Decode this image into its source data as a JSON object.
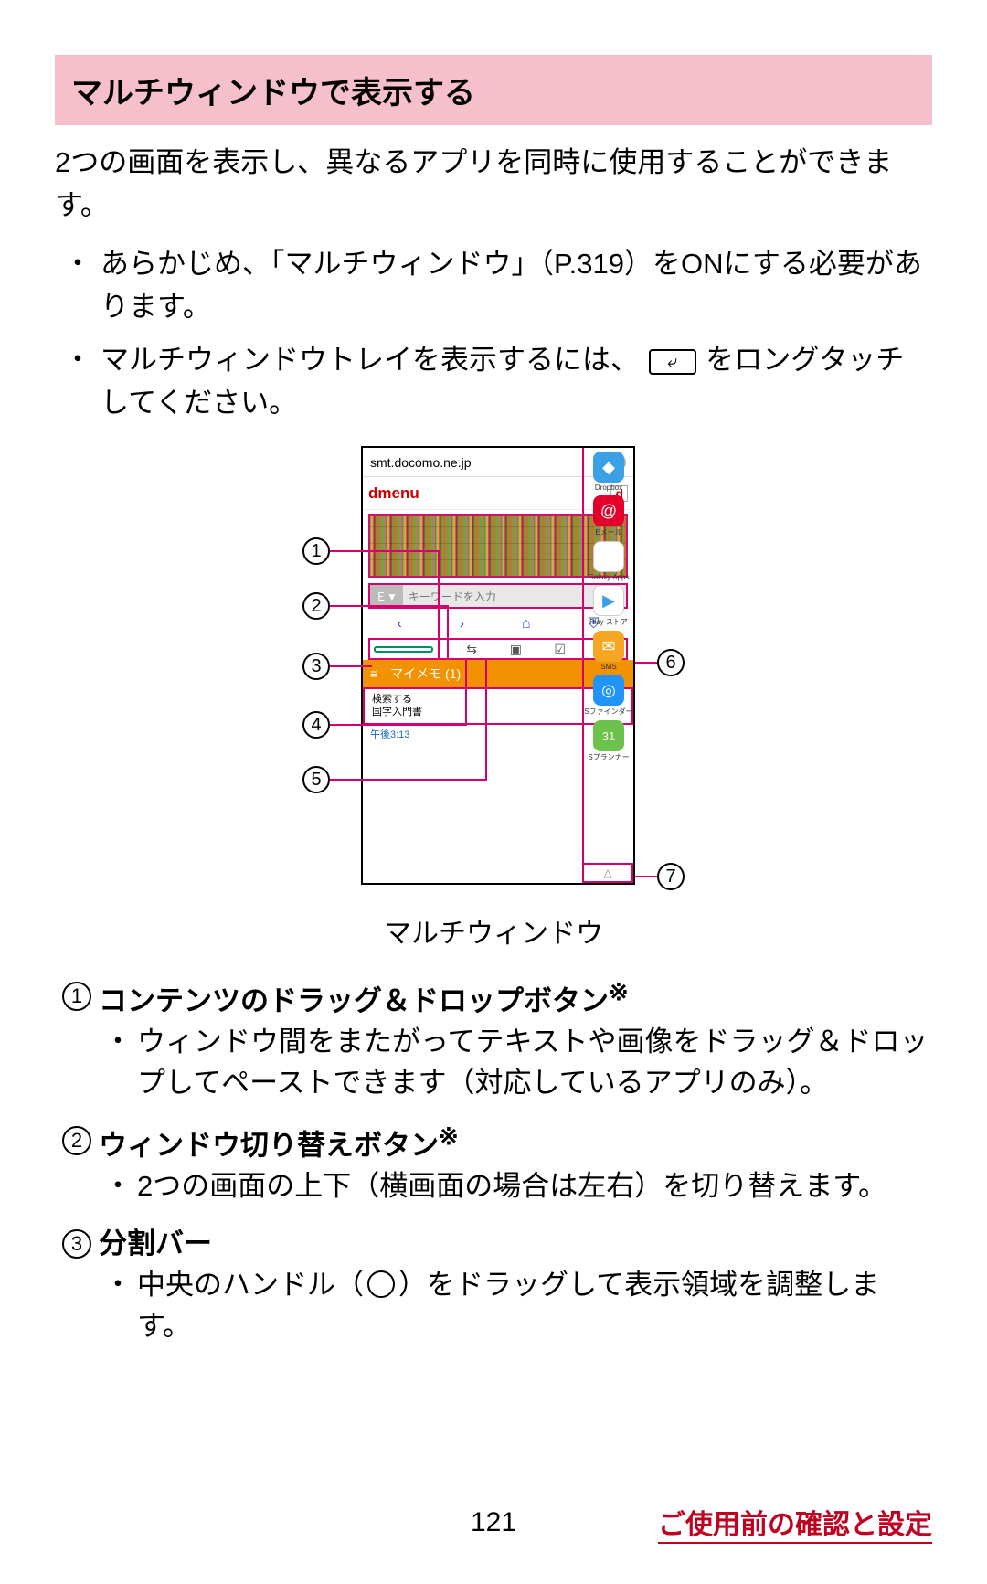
{
  "colors": {
    "title_bg": "#f5bfcc",
    "magenta": "#d6006c",
    "green": "#009060",
    "orange": "#f39200",
    "footer_red": "#c00020"
  },
  "title": "マルチウィンドウで表示する",
  "intro": "2つの画面を表示し、異なるアプリを同時に使用することができます。",
  "bullets": [
    {
      "pre": "あらかじめ、「マルチウィンドウ」（P.319）をONにする必要があります。"
    },
    {
      "pre": "マルチウィンドウトレイを表示するには、",
      "post": " をロングタッチしてください。",
      "icon": "back"
    }
  ],
  "figure": {
    "url": "smt.docomo.ne.jp",
    "dmenu": "dmenu",
    "dmark": "d",
    "kw_btn": "Ｅ▼",
    "keyword_placeholder": "キーワードを入力",
    "nav_icons": [
      "‹",
      "›",
      "⌂",
      "⛨"
    ],
    "tool_icons": [
      "⇆",
      "▣",
      "☑",
      "✕"
    ],
    "memo_header": "≡　マイメモ (1)",
    "memo_line1": "検索する",
    "memo_line2": "国字入門書",
    "memo_time": "午後3:13",
    "tray": [
      {
        "label": "Dropbox",
        "color": "#3ca0e6",
        "glyph": "◆"
      },
      {
        "label": "Eメール",
        "color": "#e4002b",
        "glyph": "@"
      },
      {
        "label": "Galaxy Apps",
        "color": "#ffffff",
        "glyph": "◯",
        "border": "1px solid #ccc"
      },
      {
        "label": "Play ストア",
        "color": "#ffffff",
        "glyph": "▶",
        "border": "1px solid #ccc",
        "glyphColor": "#3ca0e6"
      },
      {
        "label": "SMS",
        "color": "#f5a623",
        "glyph": "✉"
      },
      {
        "label": "Sファインダー",
        "color": "#2094fa",
        "glyph": "◎"
      },
      {
        "label": "Sプランナー",
        "color": "#6cc24a",
        "glyph": "31"
      }
    ],
    "tray_footer": "△",
    "caption": "マルチウィンドウ",
    "callouts": [
      "1",
      "2",
      "3",
      "4",
      "5",
      "6",
      "7"
    ]
  },
  "definitions": [
    {
      "num": "1",
      "title": "コンテンツのドラッグ＆ドロップボタン",
      "star": "※",
      "body": "ウィンドウ間をまたがってテキストや画像をドラッグ＆ドロップしてペーストできます（対応しているアプリのみ）。"
    },
    {
      "num": "2",
      "title": "ウィンドウ切り替えボタン",
      "star": "※",
      "body": "2つの画面の上下（横画面の場合は左右）を切り替えます。"
    },
    {
      "num": "3",
      "title": "分割バー",
      "star": "",
      "body_pre": "中央のハンドル（",
      "body_post": "）をドラッグして表示領域を調整します。"
    }
  ],
  "footer": {
    "page": "121",
    "link": "ご使用前の確認と設定"
  }
}
